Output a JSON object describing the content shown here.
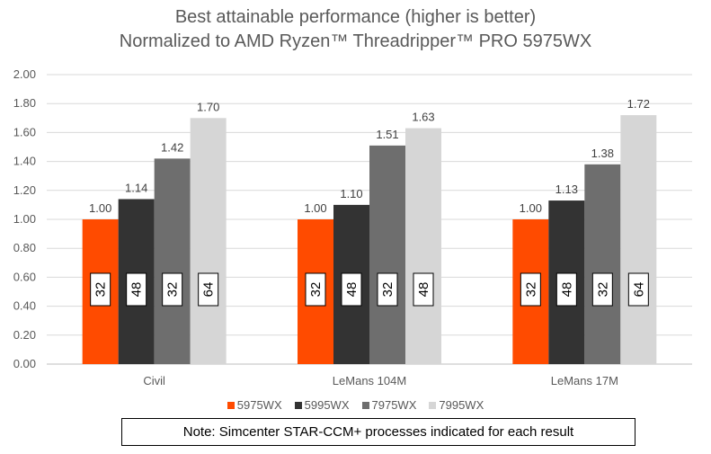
{
  "chart_data": {
    "type": "bar",
    "title": "Best attainable performance (higher is better)",
    "subtitle": "Normalized to AMD Ryzen™ Threadripper™ PRO 5975WX",
    "categories": [
      "Civil",
      "LeMans 104M",
      "LeMans 17M"
    ],
    "series": [
      {
        "name": "5975WX",
        "color": "#ff4b00",
        "values": [
          1.0,
          1.0,
          1.0
        ],
        "labels": [
          "1.00",
          "1.00",
          "1.00"
        ],
        "processes": [
          "32",
          "32",
          "32"
        ]
      },
      {
        "name": "5995WX",
        "color": "#333333",
        "values": [
          1.14,
          1.1,
          1.13
        ],
        "labels": [
          "1.14",
          "1.10",
          "1.13"
        ],
        "processes": [
          "48",
          "48",
          "48"
        ]
      },
      {
        "name": "7975WX",
        "color": "#6e6e6e",
        "values": [
          1.42,
          1.51,
          1.38
        ],
        "labels": [
          "1.42",
          "1.51",
          "1.38"
        ],
        "processes": [
          "32",
          "32",
          "32"
        ]
      },
      {
        "name": "7995WX",
        "color": "#d6d6d6",
        "values": [
          1.7,
          1.63,
          1.72
        ],
        "labels": [
          "1.70",
          "1.63",
          "1.72"
        ],
        "processes": [
          "64",
          "48",
          "64"
        ]
      }
    ],
    "ylim": [
      0,
      2.0
    ],
    "yticks": [
      "0.00",
      "0.20",
      "0.40",
      "0.60",
      "0.80",
      "1.00",
      "1.20",
      "1.40",
      "1.60",
      "1.80",
      "2.00"
    ],
    "grid": true,
    "legend_position": "bottom",
    "note": "Note: Simcenter STAR-CCM+ processes indicated for each result"
  }
}
